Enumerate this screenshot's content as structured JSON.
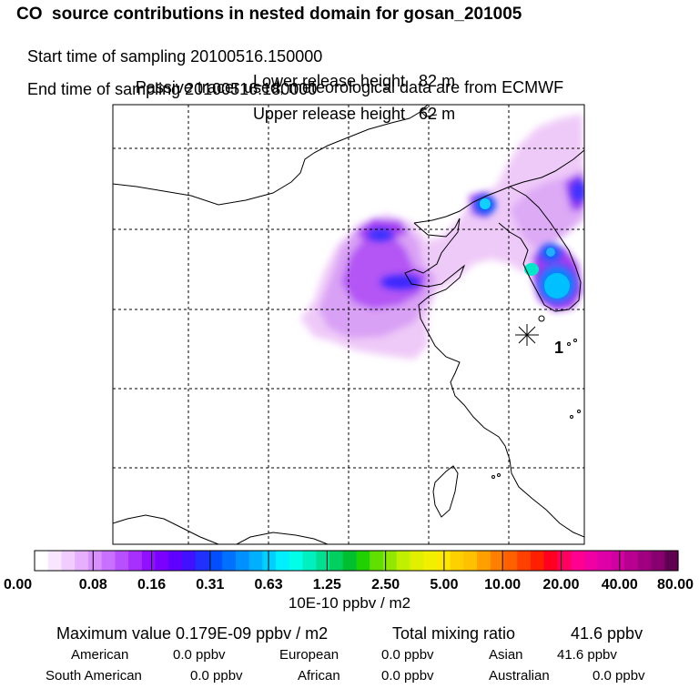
{
  "header": {
    "title": "CO  source contributions in nested domain for gosan_201005",
    "start_time_label": "Start time of sampling 20100516.150000",
    "end_time_label": "End time of sampling 20100516.180000",
    "lower_release": "Lower release height   82 m",
    "upper_release": "Upper release height   62 m",
    "tracer_note": "Passive tracer used, meteorological data are from ECMWF"
  },
  "chart_data": {
    "type": "heatmap",
    "title": "CO  source contributions in nested domain for gosan_201005",
    "grid": true,
    "receptor_label": "1",
    "colorbar": {
      "unit": "10E-10 ppbv / m2",
      "tick_labels": [
        "0.00",
        "0.08",
        "0.16",
        "0.31",
        "0.63",
        "1.25",
        "2.50",
        "5.00",
        "10.00",
        "20.00",
        "40.00",
        "80.00"
      ],
      "colors": [
        "#ffffff",
        "#f8e6ff",
        "#f0ccff",
        "#e6b0ff",
        "#d890ff",
        "#c870ff",
        "#b850ff",
        "#a830ff",
        "#9010ff",
        "#7a00ff",
        "#6000ff",
        "#4010ff",
        "#2030ff",
        "#0050ff",
        "#0070ff",
        "#0090ff",
        "#00b0ff",
        "#00d0ff",
        "#00f0ff",
        "#00ffe6",
        "#00f0c0",
        "#00e090",
        "#00d060",
        "#00c030",
        "#20d000",
        "#60e000",
        "#90e800",
        "#c0f000",
        "#e0f000",
        "#f0f000",
        "#ffe800",
        "#ffd000",
        "#ffc000",
        "#ffa000",
        "#ff8000",
        "#ff6000",
        "#ff4000",
        "#ff2000",
        "#ff0020",
        "#ff0060",
        "#ff0090",
        "#f000a0",
        "#e000a8",
        "#d000a0",
        "#b80090",
        "#a00080",
        "#880070",
        "#600050"
      ]
    }
  },
  "stats": {
    "max_label": "Maximum value  0.179E-09 ppbv / m2",
    "total_label": "Total mixing ratio",
    "total_value": "41.6 ppbv",
    "american_label": "American",
    "american_value": "0.0 ppbv",
    "european_label": "European",
    "european_value": "0.0 ppbv",
    "asian_label": "Asian",
    "asian_value": "41.6 ppbv",
    "south_american_label": "South American",
    "south_american_value": "0.0 ppbv",
    "african_label": "African",
    "african_value": "0.0 ppbv",
    "australian_label": "Australian",
    "australian_value": "0.0 ppbv"
  }
}
